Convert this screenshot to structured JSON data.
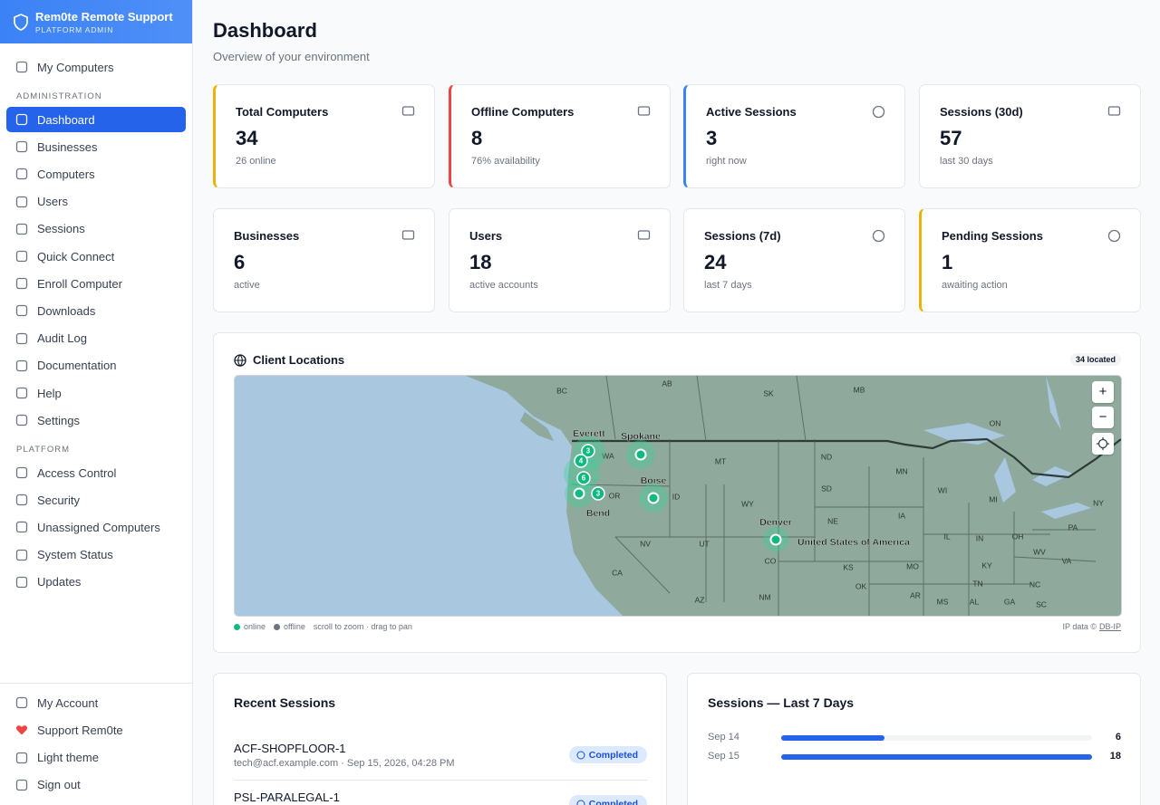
{
  "sidebar": {
    "brand": "Rem0te Remote Support",
    "brand_sub": "PLATFORM ADMIN",
    "top": [
      "My Computers"
    ],
    "sections": [
      {
        "title": "ADMINISTRATION",
        "items": [
          "Dashboard",
          "Businesses",
          "Computers",
          "Users",
          "Sessions",
          "Quick Connect",
          "Enroll Computer",
          "Downloads",
          "Audit Log",
          "Documentation",
          "Help",
          "Settings"
        ]
      },
      {
        "title": "PLATFORM",
        "items": [
          "Access Control",
          "Security",
          "Unassigned Computers",
          "System Status",
          "Updates"
        ]
      }
    ],
    "footer": [
      "My Account",
      "Support Rem0te",
      "Light theme",
      "Sign out"
    ]
  },
  "header": {
    "title": "Dashboard",
    "subtitle": "Overview of your environment"
  },
  "stats": [
    {
      "label": "Total Computers",
      "value": 34,
      "note": "26 online"
    },
    {
      "label": "Offline Computers",
      "value": 8,
      "note": "76% availability"
    },
    {
      "label": "Active Sessions",
      "value": 3,
      "note": "right now"
    },
    {
      "label": "Sessions (30d)",
      "value": 57,
      "note": "last 30 days"
    },
    {
      "label": "Businesses",
      "value": 6,
      "note": "active"
    },
    {
      "label": "Users",
      "value": 18,
      "note": "active accounts"
    },
    {
      "label": "Sessions (7d)",
      "value": 24,
      "note": "last 7 days"
    },
    {
      "label": "Pending Sessions",
      "value": 1,
      "note": "awaiting action"
    }
  ],
  "map": {
    "title": "Client Locations",
    "badge": "34 located",
    "zoom_in": "+",
    "zoom_out": "−",
    "labels": [
      "BC",
      "AB",
      "SK",
      "MB",
      "ON",
      "WA",
      "MT",
      "ND",
      "MN",
      "WI",
      "MI",
      "NY",
      "OR",
      "ID",
      "WY",
      "SD",
      "IA",
      "NE",
      "IL",
      "IN",
      "OH",
      "PA",
      "NV",
      "UT",
      "CO",
      "KS",
      "MO",
      "KY",
      "WV",
      "VA",
      "CA",
      "AZ",
      "NM",
      "OK",
      "AR",
      "TN",
      "NC",
      "MS",
      "AL",
      "GA",
      "SC"
    ],
    "cities": [
      "Everett",
      "Spokane",
      "Boise",
      "Bend",
      "Denver",
      "United States of America"
    ],
    "clusters": [
      3,
      4,
      6,
      3
    ],
    "legend": [
      "online",
      "offline"
    ],
    "hint": "scroll to zoom · drag to pan",
    "credit": "IP data ©",
    "credit_link": "DB-IP"
  },
  "recent_sessions": {
    "title": "Recent Sessions",
    "rows": [
      {
        "name": "ACF-SHOPFLOOR-1",
        "detail": "tech@acf.example.com · Sep 15, 2026, 04:28 PM",
        "status": "Completed"
      },
      {
        "name": "PSL-PARALEGAL-1",
        "status": "Completed"
      }
    ]
  },
  "sessions_chart": {
    "type": "bar",
    "title": "Sessions — Last 7 Days",
    "categories": [
      "Sep 14",
      "Sep 15"
    ],
    "values": [
      6,
      18
    ],
    "color": "#2563eb"
  }
}
